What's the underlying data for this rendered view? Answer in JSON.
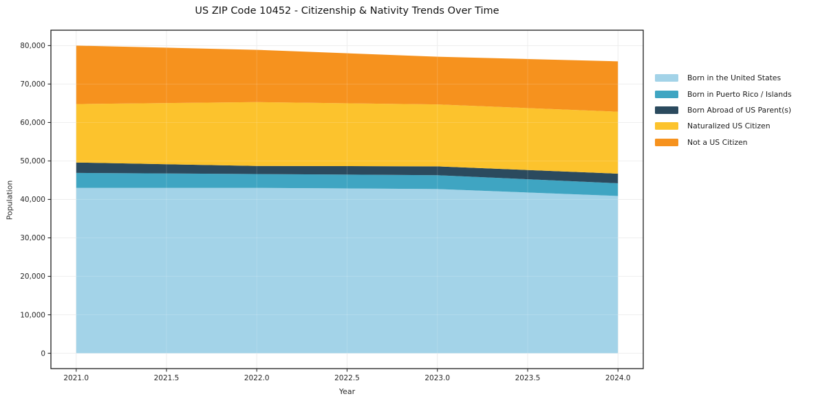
{
  "page": {
    "background": "#ffffff"
  },
  "chart_data": {
    "type": "area",
    "stacked": true,
    "title": "US ZIP Code 10452 - Citizenship & Nativity Trends Over Time",
    "xlabel": "Year",
    "ylabel": "Population",
    "x": [
      2021,
      2022,
      2023,
      2024
    ],
    "series": [
      {
        "name": "Born in the United States",
        "color": "#a3d3e8",
        "values": [
          43000,
          43000,
          42700,
          40900
        ]
      },
      {
        "name": "Born in Puerto Rico / Islands",
        "color": "#3fa5c2",
        "values": [
          3900,
          3600,
          3600,
          3300
        ]
      },
      {
        "name": "Born Abroad of US Parent(s)",
        "color": "#2b4a5e",
        "values": [
          2700,
          2100,
          2300,
          2500
        ]
      },
      {
        "name": "Naturalized US Citizen",
        "color": "#fcc32d",
        "values": [
          15200,
          16600,
          16100,
          16100
        ]
      },
      {
        "name": "Not a US Citizen",
        "color": "#f6921e",
        "values": [
          15200,
          13600,
          12400,
          13100
        ]
      }
    ],
    "stack_totals": [
      80000,
      78900,
      77100,
      75900
    ],
    "xlim": [
      2020.86,
      2024.14
    ],
    "ylim": [
      -4000,
      84000
    ],
    "xticks": {
      "values": [
        2021.0,
        2021.5,
        2022.0,
        2022.5,
        2023.0,
        2023.5,
        2024.0
      ],
      "labels": [
        "2021.0",
        "2021.5",
        "2022.0",
        "2022.5",
        "2023.0",
        "2023.5",
        "2024.0"
      ]
    },
    "yticks": {
      "values": [
        0,
        10000,
        20000,
        30000,
        40000,
        50000,
        60000,
        70000,
        80000
      ],
      "labels": [
        "0",
        "10,000",
        "20,000",
        "30,000",
        "40,000",
        "50,000",
        "60,000",
        "70,000",
        "80,000"
      ]
    },
    "grid": true,
    "legend_position": "right of plot"
  }
}
